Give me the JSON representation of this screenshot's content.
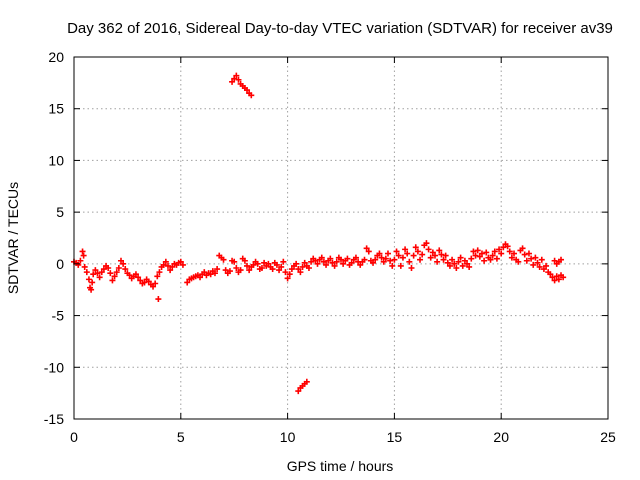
{
  "chart_data": {
    "type": "scatter",
    "title": "Day 362 of 2016, Sidereal Day-to-day VTEC variation (SDTVAR) for receiver av39",
    "xlabel": "GPS time / hours",
    "ylabel": "SDTVAR / TECUs",
    "xlim": [
      0,
      25
    ],
    "ylim": [
      -15,
      20
    ],
    "grid": true,
    "xticks": [
      0,
      5,
      10,
      15,
      20,
      25
    ],
    "yticks": [
      20,
      15,
      10,
      5,
      0,
      -5,
      -10,
      -15
    ],
    "xtick_labels": [
      "0",
      "5",
      "10",
      "15",
      "20",
      "25"
    ],
    "ytick_labels": [
      "20",
      "15",
      "10",
      "5",
      "0",
      "-5",
      "-10",
      "-15"
    ],
    "marker_color": "#ff0000",
    "marker": "plus",
    "series": [
      {
        "name": "SDTVAR",
        "points": [
          [
            0.0,
            0.2
          ],
          [
            0.1,
            0.1
          ],
          [
            0.2,
            -0.1
          ],
          [
            0.3,
            0.3
          ],
          [
            0.4,
            1.2
          ],
          [
            0.45,
            0.8
          ],
          [
            0.5,
            -0.3
          ],
          [
            0.6,
            -0.8
          ],
          [
            0.7,
            -1.5
          ],
          [
            0.75,
            -2.3
          ],
          [
            0.8,
            -2.5
          ],
          [
            0.85,
            -1.8
          ],
          [
            0.9,
            -1.0
          ],
          [
            1.0,
            -0.6
          ],
          [
            1.1,
            -0.9
          ],
          [
            1.2,
            -1.3
          ],
          [
            1.3,
            -0.8
          ],
          [
            1.4,
            -0.5
          ],
          [
            1.5,
            -0.2
          ],
          [
            1.6,
            -0.4
          ],
          [
            1.7,
            -0.9
          ],
          [
            1.8,
            -1.6
          ],
          [
            1.9,
            -1.2
          ],
          [
            2.0,
            -0.8
          ],
          [
            2.1,
            -0.4
          ],
          [
            2.2,
            0.3
          ],
          [
            2.3,
            0.0
          ],
          [
            2.4,
            -0.5
          ],
          [
            2.5,
            -0.9
          ],
          [
            2.6,
            -1.1
          ],
          [
            2.7,
            -1.4
          ],
          [
            2.8,
            -1.2
          ],
          [
            2.9,
            -1.0
          ],
          [
            3.0,
            -1.3
          ],
          [
            3.1,
            -1.6
          ],
          [
            3.2,
            -1.9
          ],
          [
            3.3,
            -1.8
          ],
          [
            3.4,
            -1.5
          ],
          [
            3.5,
            -1.7
          ],
          [
            3.6,
            -2.0
          ],
          [
            3.7,
            -2.2
          ],
          [
            3.8,
            -1.9
          ],
          [
            3.9,
            -1.2
          ],
          [
            3.95,
            -3.4
          ],
          [
            4.0,
            -0.8
          ],
          [
            4.1,
            -0.3
          ],
          [
            4.2,
            -0.1
          ],
          [
            4.3,
            0.2
          ],
          [
            4.4,
            -0.2
          ],
          [
            4.5,
            -0.6
          ],
          [
            4.6,
            -0.3
          ],
          [
            4.7,
            0.0
          ],
          [
            4.8,
            -0.1
          ],
          [
            4.9,
            0.1
          ],
          [
            5.0,
            0.2
          ],
          [
            5.1,
            -0.1
          ],
          [
            5.3,
            -1.8
          ],
          [
            5.4,
            -1.5
          ],
          [
            5.5,
            -1.4
          ],
          [
            5.6,
            -1.3
          ],
          [
            5.7,
            -1.2
          ],
          [
            5.8,
            -1.1
          ],
          [
            5.9,
            -1.3
          ],
          [
            6.0,
            -1.0
          ],
          [
            6.1,
            -0.8
          ],
          [
            6.2,
            -1.1
          ],
          [
            6.3,
            -0.9
          ],
          [
            6.4,
            -1.0
          ],
          [
            6.5,
            -0.7
          ],
          [
            6.6,
            -0.9
          ],
          [
            6.7,
            -0.5
          ],
          [
            6.8,
            0.8
          ],
          [
            6.9,
            0.6
          ],
          [
            7.0,
            0.4
          ],
          [
            7.1,
            -0.6
          ],
          [
            7.2,
            -0.9
          ],
          [
            7.3,
            -0.7
          ],
          [
            7.4,
            0.3
          ],
          [
            7.5,
            0.2
          ],
          [
            7.6,
            -0.4
          ],
          [
            7.7,
            -0.8
          ],
          [
            7.8,
            -0.6
          ],
          [
            7.9,
            0.5
          ],
          [
            8.0,
            0.3
          ],
          [
            8.1,
            -0.2
          ],
          [
            8.2,
            -0.6
          ],
          [
            8.3,
            -0.3
          ],
          [
            8.4,
            -0.1
          ],
          [
            8.5,
            0.2
          ],
          [
            8.6,
            0.0
          ],
          [
            8.7,
            -0.5
          ],
          [
            8.8,
            -0.4
          ],
          [
            8.9,
            0.1
          ],
          [
            9.0,
            -0.2
          ],
          [
            9.1,
            0.0
          ],
          [
            9.2,
            -0.3
          ],
          [
            9.3,
            -0.5
          ],
          [
            9.4,
            0.1
          ],
          [
            9.5,
            -0.1
          ],
          [
            9.6,
            -0.6
          ],
          [
            9.7,
            -0.3
          ],
          [
            9.8,
            0.2
          ],
          [
            9.9,
            -0.8
          ],
          [
            10.0,
            -1.4
          ],
          [
            10.1,
            -1.0
          ],
          [
            10.2,
            -0.5
          ],
          [
            10.3,
            -0.2
          ],
          [
            10.4,
            0.0
          ],
          [
            10.5,
            -0.5
          ],
          [
            10.6,
            -0.8
          ],
          [
            10.7,
            -0.3
          ],
          [
            10.8,
            0.1
          ],
          [
            10.9,
            -0.2
          ],
          [
            11.0,
            -0.4
          ],
          [
            11.1,
            0.2
          ],
          [
            11.2,
            0.5
          ],
          [
            11.3,
            0.3
          ],
          [
            11.4,
            0.0
          ],
          [
            11.5,
            0.4
          ],
          [
            11.6,
            0.6
          ],
          [
            11.7,
            0.2
          ],
          [
            11.8,
            -0.1
          ],
          [
            11.9,
            0.3
          ],
          [
            12.0,
            0.5
          ],
          [
            12.1,
            0.1
          ],
          [
            12.2,
            -0.2
          ],
          [
            12.3,
            0.2
          ],
          [
            12.4,
            0.6
          ],
          [
            12.5,
            0.4
          ],
          [
            12.6,
            0.0
          ],
          [
            12.7,
            0.3
          ],
          [
            12.8,
            0.5
          ],
          [
            12.9,
            -0.1
          ],
          [
            13.0,
            0.1
          ],
          [
            13.1,
            0.4
          ],
          [
            13.2,
            0.6
          ],
          [
            13.3,
            0.2
          ],
          [
            13.4,
            -0.1
          ],
          [
            13.5,
            0.2
          ],
          [
            13.6,
            0.4
          ],
          [
            13.7,
            1.5
          ],
          [
            13.8,
            1.2
          ],
          [
            13.9,
            0.3
          ],
          [
            14.0,
            0.1
          ],
          [
            14.1,
            0.4
          ],
          [
            14.2,
            0.8
          ],
          [
            14.3,
            1.0
          ],
          [
            14.4,
            0.6
          ],
          [
            14.5,
            0.2
          ],
          [
            14.6,
            0.5
          ],
          [
            14.7,
            1.0
          ],
          [
            14.8,
            0.3
          ],
          [
            14.9,
            -0.2
          ],
          [
            15.0,
            0.4
          ],
          [
            15.1,
            1.2
          ],
          [
            15.2,
            0.8
          ],
          [
            15.3,
            -0.2
          ],
          [
            15.4,
            0.6
          ],
          [
            15.5,
            1.4
          ],
          [
            15.6,
            1.0
          ],
          [
            15.7,
            0.2
          ],
          [
            15.8,
            -0.4
          ],
          [
            15.9,
            0.8
          ],
          [
            16.0,
            1.6
          ],
          [
            16.1,
            1.2
          ],
          [
            16.2,
            0.4
          ],
          [
            16.3,
            0.9
          ],
          [
            16.4,
            1.8
          ],
          [
            16.5,
            2.0
          ],
          [
            16.6,
            1.4
          ],
          [
            16.7,
            0.6
          ],
          [
            16.8,
            1.1
          ],
          [
            16.9,
            0.8
          ],
          [
            17.0,
            0.2
          ],
          [
            17.1,
            1.3
          ],
          [
            17.2,
            0.9
          ],
          [
            17.3,
            0.4
          ],
          [
            17.4,
            0.8
          ],
          [
            17.5,
            0.1
          ],
          [
            17.6,
            -0.2
          ],
          [
            17.7,
            0.4
          ],
          [
            17.8,
            0.0
          ],
          [
            17.9,
            -0.4
          ],
          [
            18.0,
            0.2
          ],
          [
            18.1,
            0.6
          ],
          [
            18.2,
            -0.2
          ],
          [
            18.3,
            0.3
          ],
          [
            18.4,
            0.0
          ],
          [
            18.5,
            -0.3
          ],
          [
            18.6,
            0.5
          ],
          [
            18.7,
            1.2
          ],
          [
            18.8,
            0.8
          ],
          [
            18.9,
            1.3
          ],
          [
            19.0,
            0.7
          ],
          [
            19.1,
            1.0
          ],
          [
            19.2,
            0.3
          ],
          [
            19.3,
            1.1
          ],
          [
            19.4,
            0.6
          ],
          [
            19.5,
            0.4
          ],
          [
            19.6,
            0.8
          ],
          [
            19.7,
            1.2
          ],
          [
            19.8,
            0.5
          ],
          [
            19.9,
            1.4
          ],
          [
            20.0,
            1.0
          ],
          [
            20.1,
            1.6
          ],
          [
            20.2,
            1.9
          ],
          [
            20.3,
            1.7
          ],
          [
            20.4,
            1.2
          ],
          [
            20.5,
            0.6
          ],
          [
            20.6,
            1.0
          ],
          [
            20.7,
            0.4
          ],
          [
            20.8,
            0.2
          ],
          [
            20.9,
            1.3
          ],
          [
            21.0,
            1.5
          ],
          [
            21.1,
            0.9
          ],
          [
            21.2,
            0.3
          ],
          [
            21.3,
            1.0
          ],
          [
            21.4,
            0.5
          ],
          [
            21.5,
            -0.1
          ],
          [
            21.6,
            0.6
          ],
          [
            21.7,
            0.1
          ],
          [
            21.8,
            -0.3
          ],
          [
            21.9,
            0.4
          ],
          [
            22.0,
            -0.5
          ],
          [
            22.1,
            -0.2
          ],
          [
            22.2,
            -0.8
          ],
          [
            22.3,
            -1.0
          ],
          [
            22.4,
            -1.3
          ],
          [
            22.5,
            -1.6
          ],
          [
            22.6,
            -1.2
          ],
          [
            22.7,
            -1.5
          ],
          [
            22.8,
            -1.1
          ],
          [
            22.9,
            -1.3
          ],
          [
            22.5,
            0.3
          ],
          [
            22.6,
            0.0
          ],
          [
            22.7,
            0.2
          ],
          [
            22.8,
            0.4
          ],
          [
            7.4,
            17.6
          ],
          [
            7.5,
            17.9
          ],
          [
            7.6,
            18.2
          ],
          [
            7.7,
            17.8
          ],
          [
            7.8,
            17.4
          ],
          [
            7.9,
            17.2
          ],
          [
            8.0,
            17.0
          ],
          [
            8.1,
            16.8
          ],
          [
            8.2,
            16.5
          ],
          [
            8.3,
            16.3
          ],
          [
            10.5,
            -12.3
          ],
          [
            10.6,
            -12.0
          ],
          [
            10.7,
            -11.8
          ],
          [
            10.8,
            -11.6
          ],
          [
            10.9,
            -11.4
          ]
        ]
      }
    ]
  }
}
